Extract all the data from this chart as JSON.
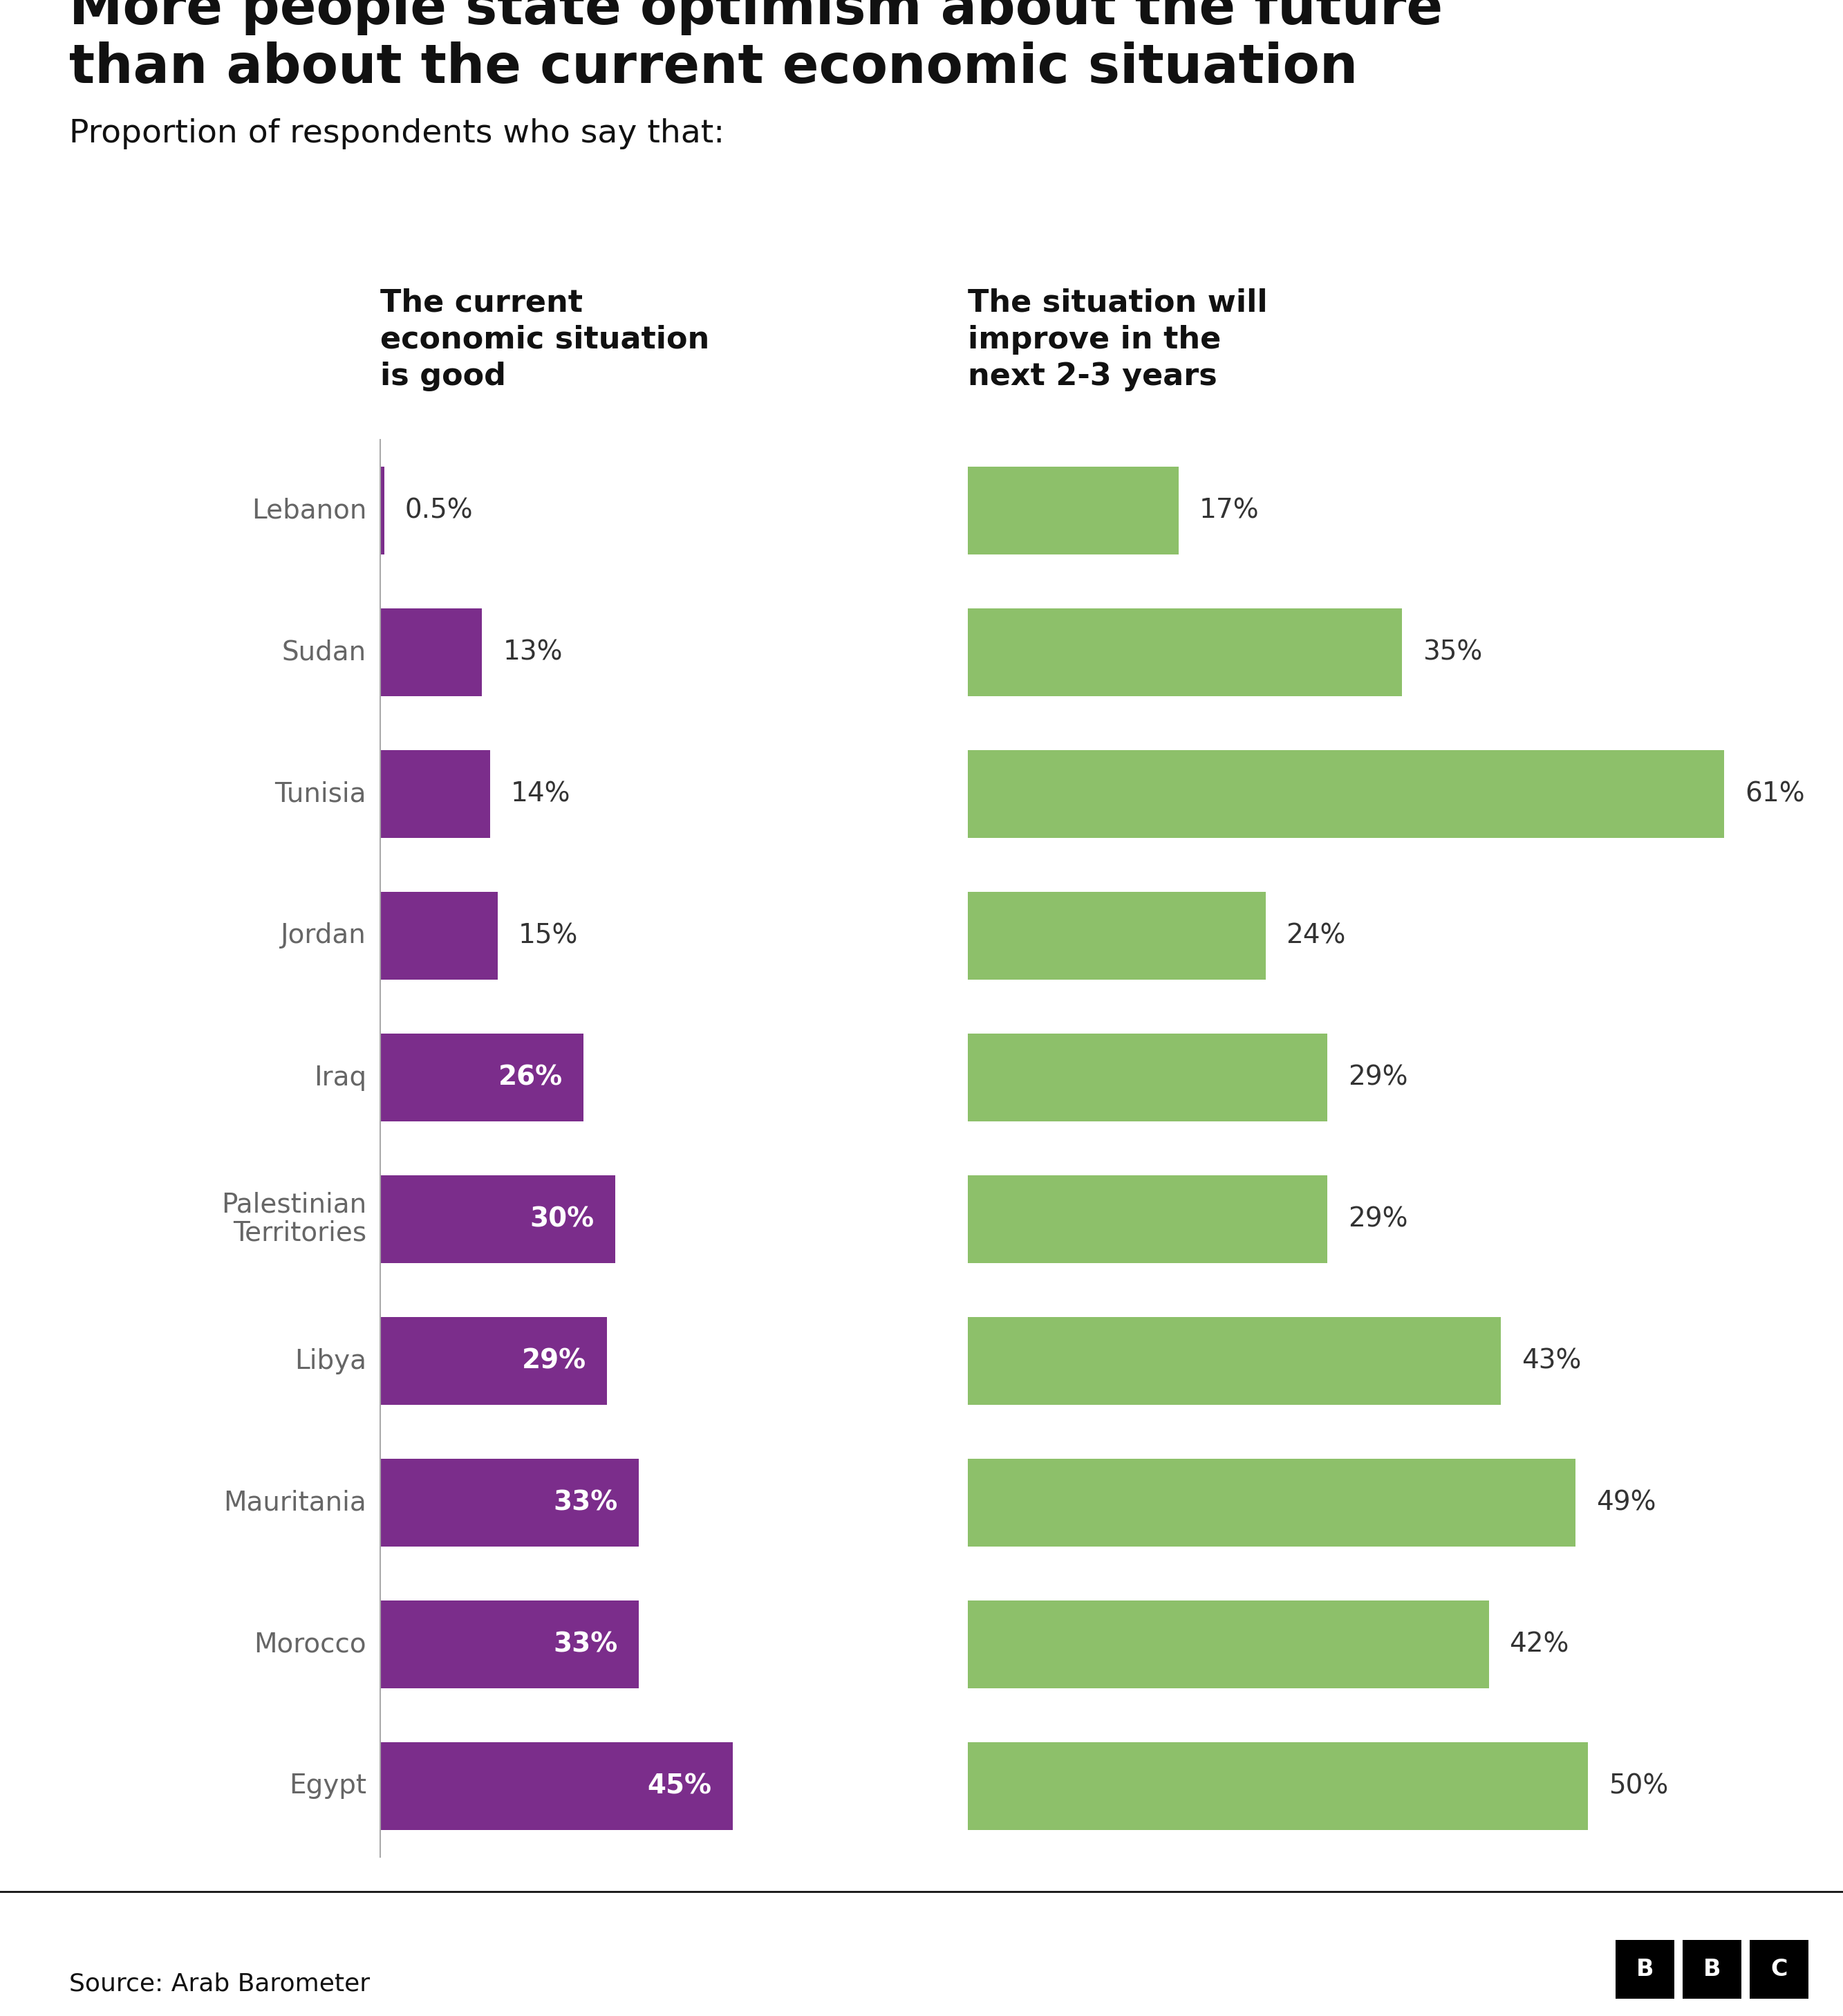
{
  "title_line1": "More people state optimism about the future",
  "title_line2": "than about the current economic situation",
  "subtitle": "Proportion of respondents who say that:",
  "col1_header": "The current\neconomic situation\nis good",
  "col2_header": "The situation will\nimprove in the\nnext 2-3 years",
  "countries": [
    "Lebanon",
    "Sudan",
    "Tunisia",
    "Jordan",
    "Iraq",
    "Palestinian\nTerritories",
    "Libya",
    "Mauritania",
    "Morocco",
    "Egypt"
  ],
  "current_values": [
    0.5,
    13,
    14,
    15,
    26,
    30,
    29,
    33,
    33,
    45
  ],
  "future_values": [
    17,
    35,
    61,
    24,
    29,
    29,
    43,
    49,
    42,
    50
  ],
  "current_labels": [
    "0.5%",
    "13%",
    "14%",
    "15%",
    "26%",
    "30%",
    "29%",
    "33%",
    "33%",
    "45%"
  ],
  "future_labels": [
    "17%",
    "35%",
    "61%",
    "24%",
    "29%",
    "29%",
    "43%",
    "49%",
    "42%",
    "50%"
  ],
  "purple_color": "#7B2D8B",
  "green_color": "#8DC06A",
  "background_color": "#FFFFFF",
  "source_text": "Source: Arab Barometer",
  "title_fontsize": 56,
  "subtitle_fontsize": 34,
  "header_fontsize": 32,
  "label_fontsize": 28,
  "country_fontsize": 28,
  "source_fontsize": 26,
  "max_val": 68
}
